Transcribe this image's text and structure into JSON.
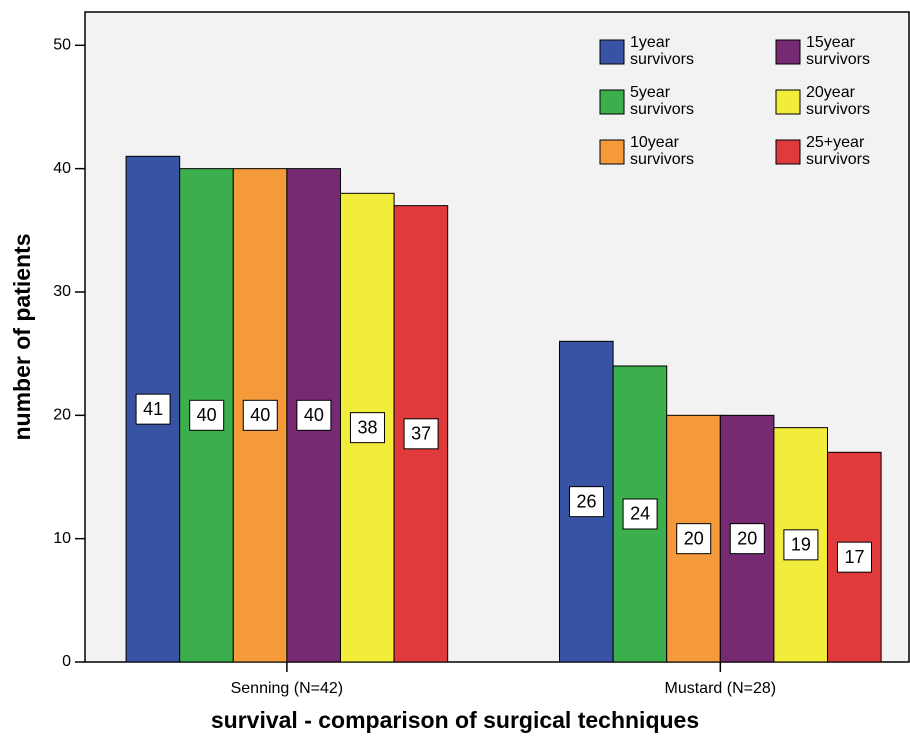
{
  "chart_data": {
    "type": "bar",
    "x_label": "survival - comparison of surgical techniques",
    "y_label": "number of patients",
    "categories": [
      "Senning (N=42)",
      "Mustard (N=28)"
    ],
    "series": [
      {
        "name": "1year survivors",
        "color": "#3953a4",
        "values": [
          41,
          26
        ]
      },
      {
        "name": "5year survivors",
        "color": "#3aaf4b",
        "values": [
          40,
          24
        ]
      },
      {
        "name": "10year survivors",
        "color": "#f59a3a",
        "values": [
          40,
          20
        ]
      },
      {
        "name": "15year survivors",
        "color": "#762a72",
        "values": [
          40,
          20
        ]
      },
      {
        "name": "20year survivors",
        "color": "#f2ec3a",
        "values": [
          38,
          19
        ]
      },
      {
        "name": "25+year survivors",
        "color": "#e03a3c",
        "values": [
          37,
          17
        ]
      }
    ],
    "ylim": [
      0,
      52.7
    ],
    "yticks": [
      0,
      10,
      20,
      30,
      40,
      50
    ],
    "legend": "upper right"
  }
}
